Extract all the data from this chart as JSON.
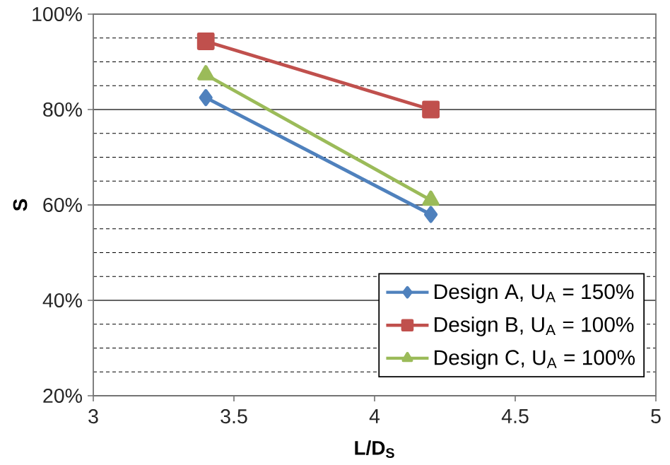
{
  "chart_data": {
    "type": "line",
    "xlabel": "L/D$_{S}$",
    "ylabel": "S",
    "xlim": [
      3,
      5
    ],
    "xticks": [
      3,
      3.5,
      4,
      4.5,
      5
    ],
    "ylim": [
      20,
      100
    ],
    "yticks": [
      {
        "value": 20,
        "label": "20%"
      },
      {
        "value": 25,
        "label": null
      },
      {
        "value": 30,
        "label": null
      },
      {
        "value": 35,
        "label": null
      },
      {
        "value": 40,
        "label": "40%"
      },
      {
        "value": 45,
        "label": null
      },
      {
        "value": 50,
        "label": null
      },
      {
        "value": 55,
        "label": null
      },
      {
        "value": 60,
        "label": "60%"
      },
      {
        "value": 65,
        "label": null
      },
      {
        "value": 70,
        "label": null
      },
      {
        "value": 75,
        "label": null
      },
      {
        "value": 80,
        "label": "80%"
      },
      {
        "value": 85,
        "label": null
      },
      {
        "value": 90,
        "label": null
      },
      {
        "value": 95,
        "label": null
      },
      {
        "value": 100,
        "label": "100%"
      }
    ],
    "grid": "y",
    "legend": "bottom right",
    "x": [
      3.4,
      4.2
    ],
    "series": [
      {
        "name": "Design A, U$_{A}$ = 150%",
        "color": "#4f81bd",
        "marker": "diamond",
        "values": [
          82.5,
          58
        ]
      },
      {
        "name": "Design B, U$_{A}$ = 100%",
        "color": "#c0504d",
        "marker": "square",
        "values": [
          94.3,
          80
        ]
      },
      {
        "name": "Design C, U$_{A}$ = 100%",
        "color": "#9bbb59",
        "marker": "triangle",
        "values": [
          87.3,
          61
        ]
      }
    ]
  }
}
